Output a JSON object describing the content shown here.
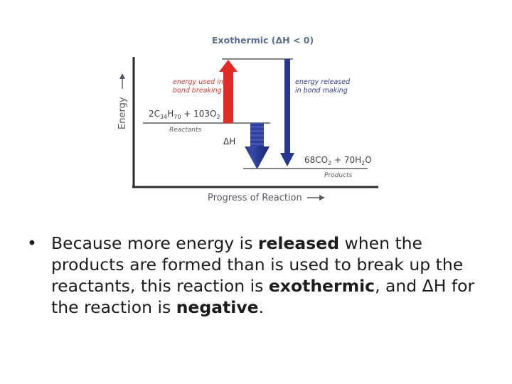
{
  "diagram": {
    "title": "Exothermic (ΔH < 0)",
    "y_axis_label": "Energy",
    "x_axis_label": "Progress of Reaction",
    "red_arrow_label": [
      "energy used in",
      "bond breaking"
    ],
    "blue_arrow_label": [
      "energy released",
      "in bond making"
    ],
    "reactants_formula": {
      "coef": "2C",
      "sub1": "34",
      "h": "H",
      "sub2": "70",
      "plus": " + 103O",
      "sub3": "2"
    },
    "reactants_label": "Reactants",
    "products_formula": {
      "p1": "68CO",
      "sub1": "2",
      "p2": " + 70H",
      "sub2": "2",
      "p3": "O"
    },
    "products_label": "Products",
    "delta_h_label": "ΔH",
    "colors": {
      "red_arrow": "#e02b27",
      "blue_arrow": "#27378f",
      "axis": "#2b2b2b",
      "title": "#5b6d8f"
    }
  },
  "bullet": {
    "marker": "•",
    "parts": [
      {
        "text": "Because more energy is ",
        "bold": false
      },
      {
        "text": "released",
        "bold": true
      },
      {
        "text": " when the products are formed than is used to break up the reactants, this reaction is ",
        "bold": false
      },
      {
        "text": "exothermic",
        "bold": true
      },
      {
        "text": ", and ΔH for the reaction is ",
        "bold": false
      },
      {
        "text": "negative",
        "bold": true
      },
      {
        "text": ".",
        "bold": false
      }
    ]
  }
}
